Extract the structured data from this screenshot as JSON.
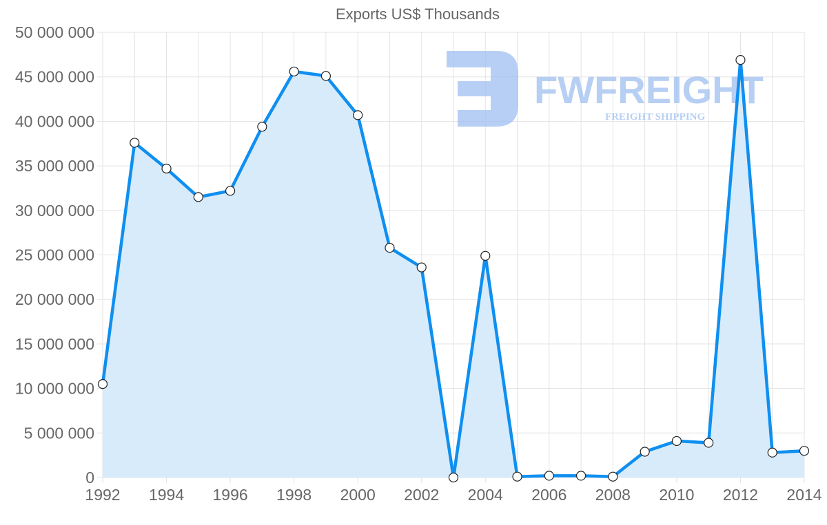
{
  "chart_data": {
    "type": "area",
    "title": "Exports US$ Thousands",
    "xlabel": "",
    "ylabel": "",
    "x": [
      1992,
      1993,
      1994,
      1995,
      1996,
      1997,
      1998,
      1999,
      2000,
      2001,
      2002,
      2003,
      2004,
      2005,
      2006,
      2007,
      2008,
      2009,
      2010,
      2011,
      2012,
      2013,
      2014
    ],
    "series": [
      {
        "name": "Exports US$ Thousands",
        "values": [
          10500000,
          37600000,
          34700000,
          31500000,
          32200000,
          39400000,
          45600000,
          45100000,
          40700000,
          25800000,
          23600000,
          0,
          24900000,
          100000,
          200000,
          200000,
          100000,
          2900000,
          4100000,
          3900000,
          46900000,
          2800000,
          3000000
        ]
      }
    ],
    "ylim": [
      0,
      50000000
    ],
    "yticks": [
      "0",
      "5 000 000",
      "10 000 000",
      "15 000 000",
      "20 000 000",
      "25 000 000",
      "30 000 000",
      "35 000 000",
      "40 000 000",
      "45 000 000",
      "50 000 000"
    ],
    "xticks": [
      "1992",
      "1994",
      "1996",
      "1998",
      "2000",
      "2002",
      "2004",
      "2006",
      "2008",
      "2010",
      "2012",
      "2014"
    ],
    "grid": true,
    "legend": "none",
    "colors": {
      "line": "#0f8ff0",
      "fill": "#d8ebfb",
      "grid": "#e3e3e3",
      "text": "#666666"
    }
  },
  "watermark": {
    "brand": "FWFREIGHT",
    "tagline": "FREIGHT SHIPPING",
    "color": "#9fbff0"
  }
}
